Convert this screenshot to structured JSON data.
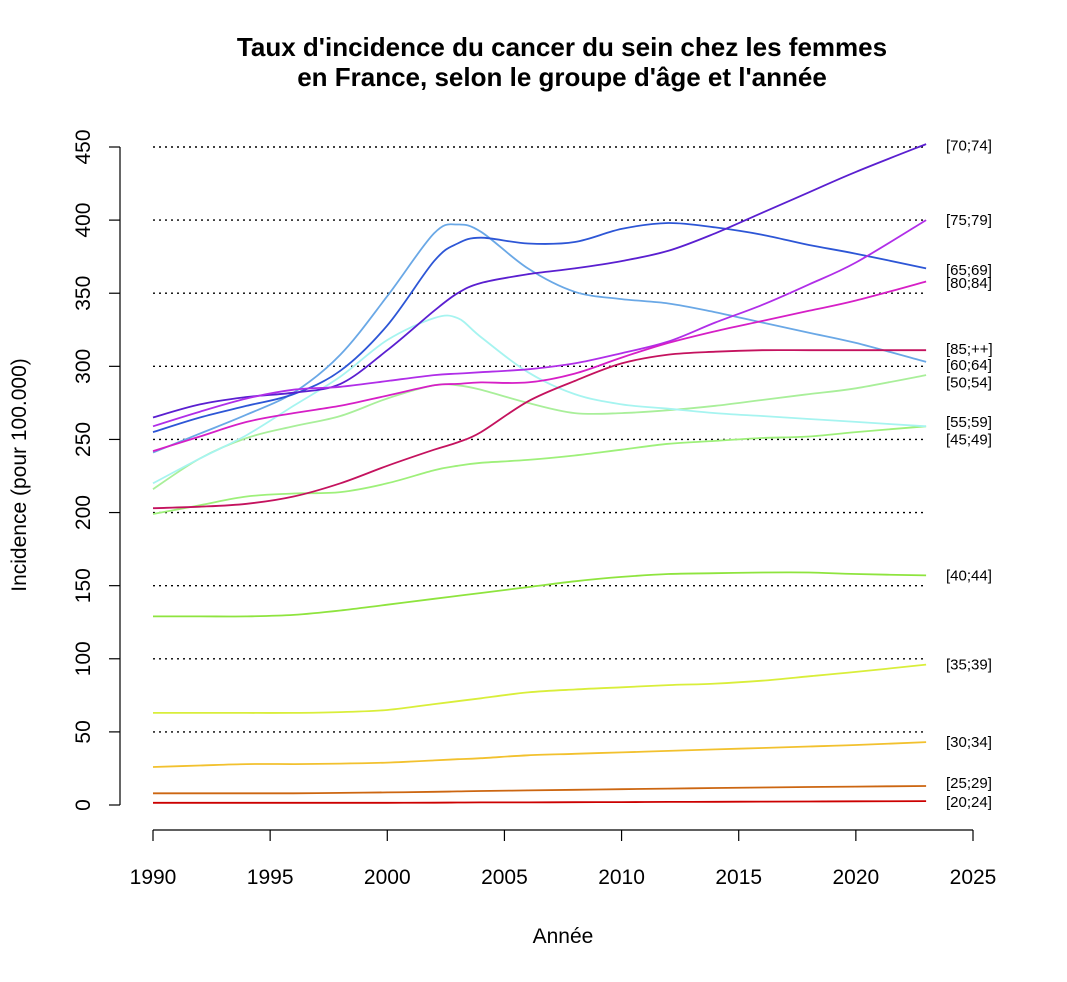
{
  "chart_data": {
    "type": "line",
    "title_lines": [
      "Taux d'incidence du cancer du sein chez les femmes",
      "en France, selon le groupe d'âge et l'année"
    ],
    "xlabel": "Année",
    "ylabel": "Incidence (pour 100.000)",
    "xlim": [
      1990,
      2025
    ],
    "ylim": [
      0,
      450
    ],
    "xticks": [
      1990,
      1995,
      2000,
      2005,
      2010,
      2015,
      2020,
      2025
    ],
    "yticks": [
      0,
      50,
      100,
      150,
      200,
      250,
      300,
      350,
      400,
      450
    ],
    "hlines": [
      50,
      100,
      150,
      200,
      250,
      300,
      350,
      400,
      450
    ],
    "x": [
      1990,
      1992,
      1994,
      1996,
      1998,
      2000,
      2002,
      2003,
      2004,
      2006,
      2008,
      2010,
      2012,
      2014,
      2016,
      2018,
      2020,
      2023
    ],
    "series": [
      {
        "name": "[20;24]",
        "color": "#cc0000",
        "values": [
          1.5,
          1.5,
          1.5,
          1.5,
          1.5,
          1.5,
          1.6,
          1.7,
          1.8,
          1.8,
          1.9,
          2.0,
          2.1,
          2.2,
          2.3,
          2.4,
          2.5,
          2.7
        ]
      },
      {
        "name": "[25;29]",
        "color": "#cc6611",
        "values": [
          8,
          8,
          8,
          8,
          8.3,
          8.6,
          9,
          9.3,
          9.6,
          10,
          10.4,
          10.8,
          11.2,
          11.6,
          12,
          12.3,
          12.6,
          13
        ]
      },
      {
        "name": "[30;34]",
        "color": "#f2c12e",
        "values": [
          26,
          27,
          28,
          28,
          28.3,
          29,
          30.5,
          31.3,
          32,
          34,
          35,
          36,
          37,
          38,
          39,
          40,
          41,
          43
        ]
      },
      {
        "name": "[35;39]",
        "color": "#d9ee3a",
        "values": [
          63,
          63,
          63,
          63,
          63.5,
          65,
          69,
          71,
          73,
          77,
          79,
          80.5,
          82,
          83,
          85,
          88,
          91,
          96
        ]
      },
      {
        "name": "[40;44]",
        "color": "#8ee43e",
        "values": [
          129,
          129,
          129,
          130,
          133,
          137,
          141,
          143,
          145,
          149,
          153,
          156,
          158,
          158.5,
          159,
          159,
          158,
          157
        ]
      },
      {
        "name": "[45;49]",
        "color": "#9ef07a",
        "values": [
          199,
          205,
          211,
          213,
          214,
          220,
          229,
          232,
          234,
          236,
          239,
          243,
          247,
          249,
          251,
          252,
          255,
          259
        ]
      },
      {
        "name": "[50;54]",
        "color": "#a9ef9a",
        "values": [
          216,
          237,
          251,
          259,
          266,
          278,
          287,
          287,
          284,
          275,
          268,
          268,
          270,
          273,
          277,
          281,
          285,
          294
        ]
      },
      {
        "name": "[55;59]",
        "color": "#a6f4f0",
        "values": [
          220,
          237,
          253,
          273,
          293,
          318,
          333,
          333,
          320,
          296,
          281,
          274,
          271,
          268,
          266,
          264,
          262,
          259
        ]
      },
      {
        "name": "[60;64]",
        "color": "#6aa8e6",
        "values": [
          241,
          254,
          267,
          282,
          308,
          348,
          391,
          397,
          392,
          367,
          351,
          346,
          343,
          337,
          330,
          323,
          316,
          303
        ]
      },
      {
        "name": "[65;69]",
        "color": "#2d56d6",
        "values": [
          255,
          265,
          273,
          281,
          297,
          328,
          372,
          384,
          388,
          384,
          385,
          394,
          398,
          395,
          390,
          383,
          377,
          367
        ]
      },
      {
        "name": "[70;74]",
        "color": "#5a1fd0",
        "values": [
          265,
          274,
          279,
          282,
          288,
          311,
          338,
          350,
          357,
          363,
          367,
          372,
          379,
          391,
          405,
          419,
          433,
          452
        ]
      },
      {
        "name": "[75;79]",
        "color": "#b02ee8",
        "values": [
          259,
          269,
          278,
          284,
          286,
          290,
          294,
          295,
          296,
          298,
          302,
          309,
          317,
          330,
          342,
          356,
          371,
          400
        ]
      },
      {
        "name": "[80;84]",
        "color": "#d61fc6",
        "values": [
          242,
          252,
          262,
          268,
          273,
          280,
          287,
          288,
          289,
          289,
          295,
          306,
          316,
          324,
          331,
          338,
          345,
          358
        ]
      },
      {
        "name": "[85;++]",
        "color": "#c4125e",
        "values": [
          203,
          204,
          206,
          211,
          220,
          232,
          243,
          248,
          255,
          276,
          290,
          302,
          308,
          310,
          311,
          311,
          311,
          311
        ]
      }
    ],
    "end_labels": [
      {
        "text": "[70;74]",
        "y": 451
      },
      {
        "text": "[75;79]",
        "y": 400
      },
      {
        "text": "[65;69]",
        "y": 366
      },
      {
        "text": "[80;84]",
        "y": 357
      },
      {
        "text": "[85;++]",
        "y": 312
      },
      {
        "text": "[60;64]",
        "y": 301
      },
      {
        "text": "[50;54]",
        "y": 289
      },
      {
        "text": "[55;59]",
        "y": 262
      },
      {
        "text": "[45;49]",
        "y": 250
      },
      {
        "text": "[40;44]",
        "y": 157
      },
      {
        "text": "[35;39]",
        "y": 96
      },
      {
        "text": "[30;34]",
        "y": 43
      },
      {
        "text": "[25;29]",
        "y": 15
      },
      {
        "text": "[20;24]",
        "y": 2
      }
    ]
  }
}
